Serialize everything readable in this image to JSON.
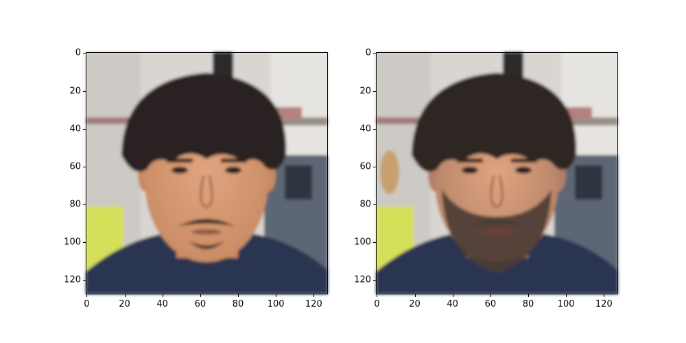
{
  "figure": {
    "panels": [
      {
        "id": "left",
        "subject": "young man, black fringe haircut, light mustache and chin beard, navy shirt",
        "skin_color": "#c88a62",
        "hair_color": "#2a2220",
        "shirt_color": "#2b3451",
        "beard_color": "#3a2a24",
        "beard_amount": 0.3,
        "x_ticks": [
          "0",
          "20",
          "40",
          "60",
          "80",
          "100",
          "120"
        ],
        "y_ticks": [
          "0",
          "20",
          "40",
          "60",
          "80",
          "100",
          "120"
        ]
      },
      {
        "id": "right",
        "subject": "same man aged, fuller greying beard and mustache, navy shirt",
        "skin_color": "#b28066",
        "hair_color": "#2e2624",
        "shirt_color": "#2b3451",
        "beard_color": "#4a3b34",
        "beard_amount": 0.9,
        "x_ticks": [
          "0",
          "20",
          "40",
          "60",
          "80",
          "100",
          "120"
        ],
        "y_ticks": [
          "0",
          "20",
          "40",
          "60",
          "80",
          "100",
          "120"
        ]
      }
    ]
  }
}
